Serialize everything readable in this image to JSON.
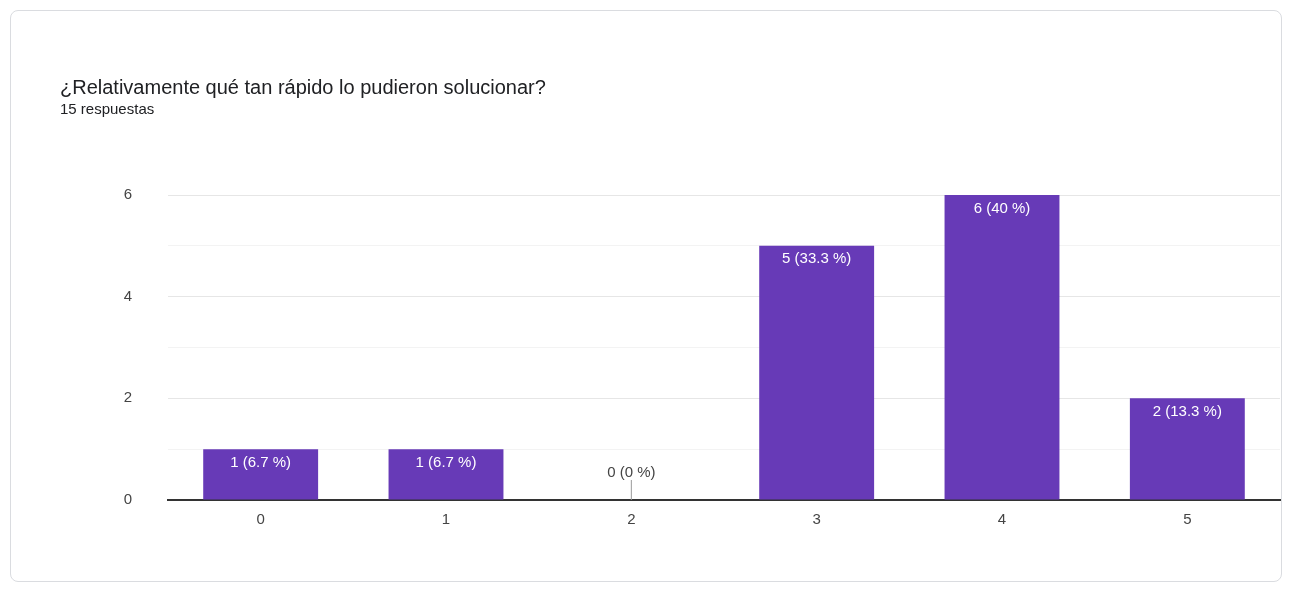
{
  "chart_data": {
    "type": "bar",
    "title": "¿Relativamente qué tan rápido lo pudieron solucionar?",
    "subtitle": "15 respuestas",
    "categories": [
      "0",
      "1",
      "2",
      "3",
      "4",
      "5"
    ],
    "values": [
      1,
      1,
      0,
      5,
      6,
      2
    ],
    "value_labels": [
      "1 (6.7 %)",
      "1 (6.7 %)",
      "0 (0 %)",
      "5 (33.3 %)",
      "6 (40 %)",
      "2 (13.3 %)"
    ],
    "color": "#673ab7",
    "ylim": [
      0,
      6
    ],
    "yticks": [
      0,
      {
        "value": 1,
        "label": null
      },
      2,
      {
        "value": 3,
        "label": null
      },
      4,
      {
        "value": 5,
        "label": null
      },
      6
    ],
    "grid": "y",
    "legend": false
  }
}
